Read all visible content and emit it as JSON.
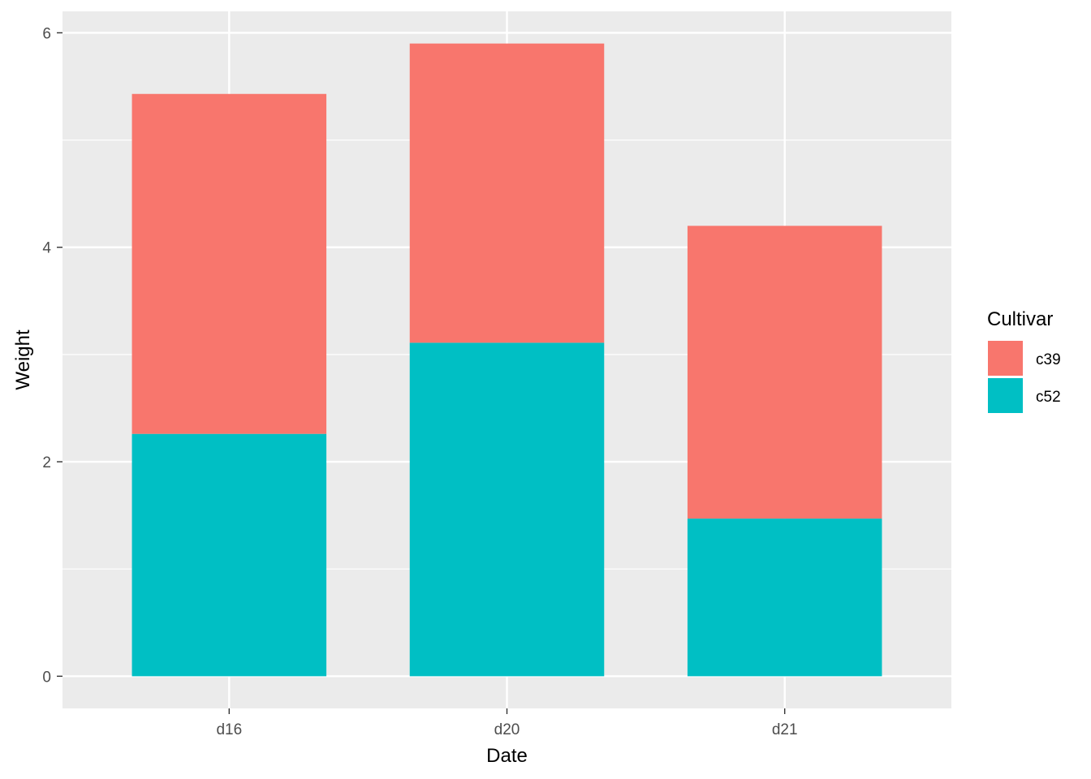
{
  "chart_data": {
    "type": "bar",
    "stacked": true,
    "title": "",
    "xlabel": "Date",
    "ylabel": "Weight",
    "categories": [
      "d16",
      "d20",
      "d21"
    ],
    "series": [
      {
        "name": "c52",
        "values": [
          2.26,
          3.11,
          1.47
        ],
        "color": "#00BFC4"
      },
      {
        "name": "c39",
        "values": [
          3.17,
          2.79,
          2.73
        ],
        "color": "#F8766D"
      }
    ],
    "ylim": [
      -0.3,
      6.2
    ],
    "yticks": [
      0,
      2,
      4,
      6
    ],
    "grid": true,
    "legend": {
      "title": "Cultivar",
      "position": "right",
      "entries": [
        {
          "label": "c39",
          "color": "#F8766D"
        },
        {
          "label": "c52",
          "color": "#00BFC4"
        }
      ]
    },
    "panel_background": "#EBEBEB",
    "grid_color": "#FFFFFF"
  }
}
